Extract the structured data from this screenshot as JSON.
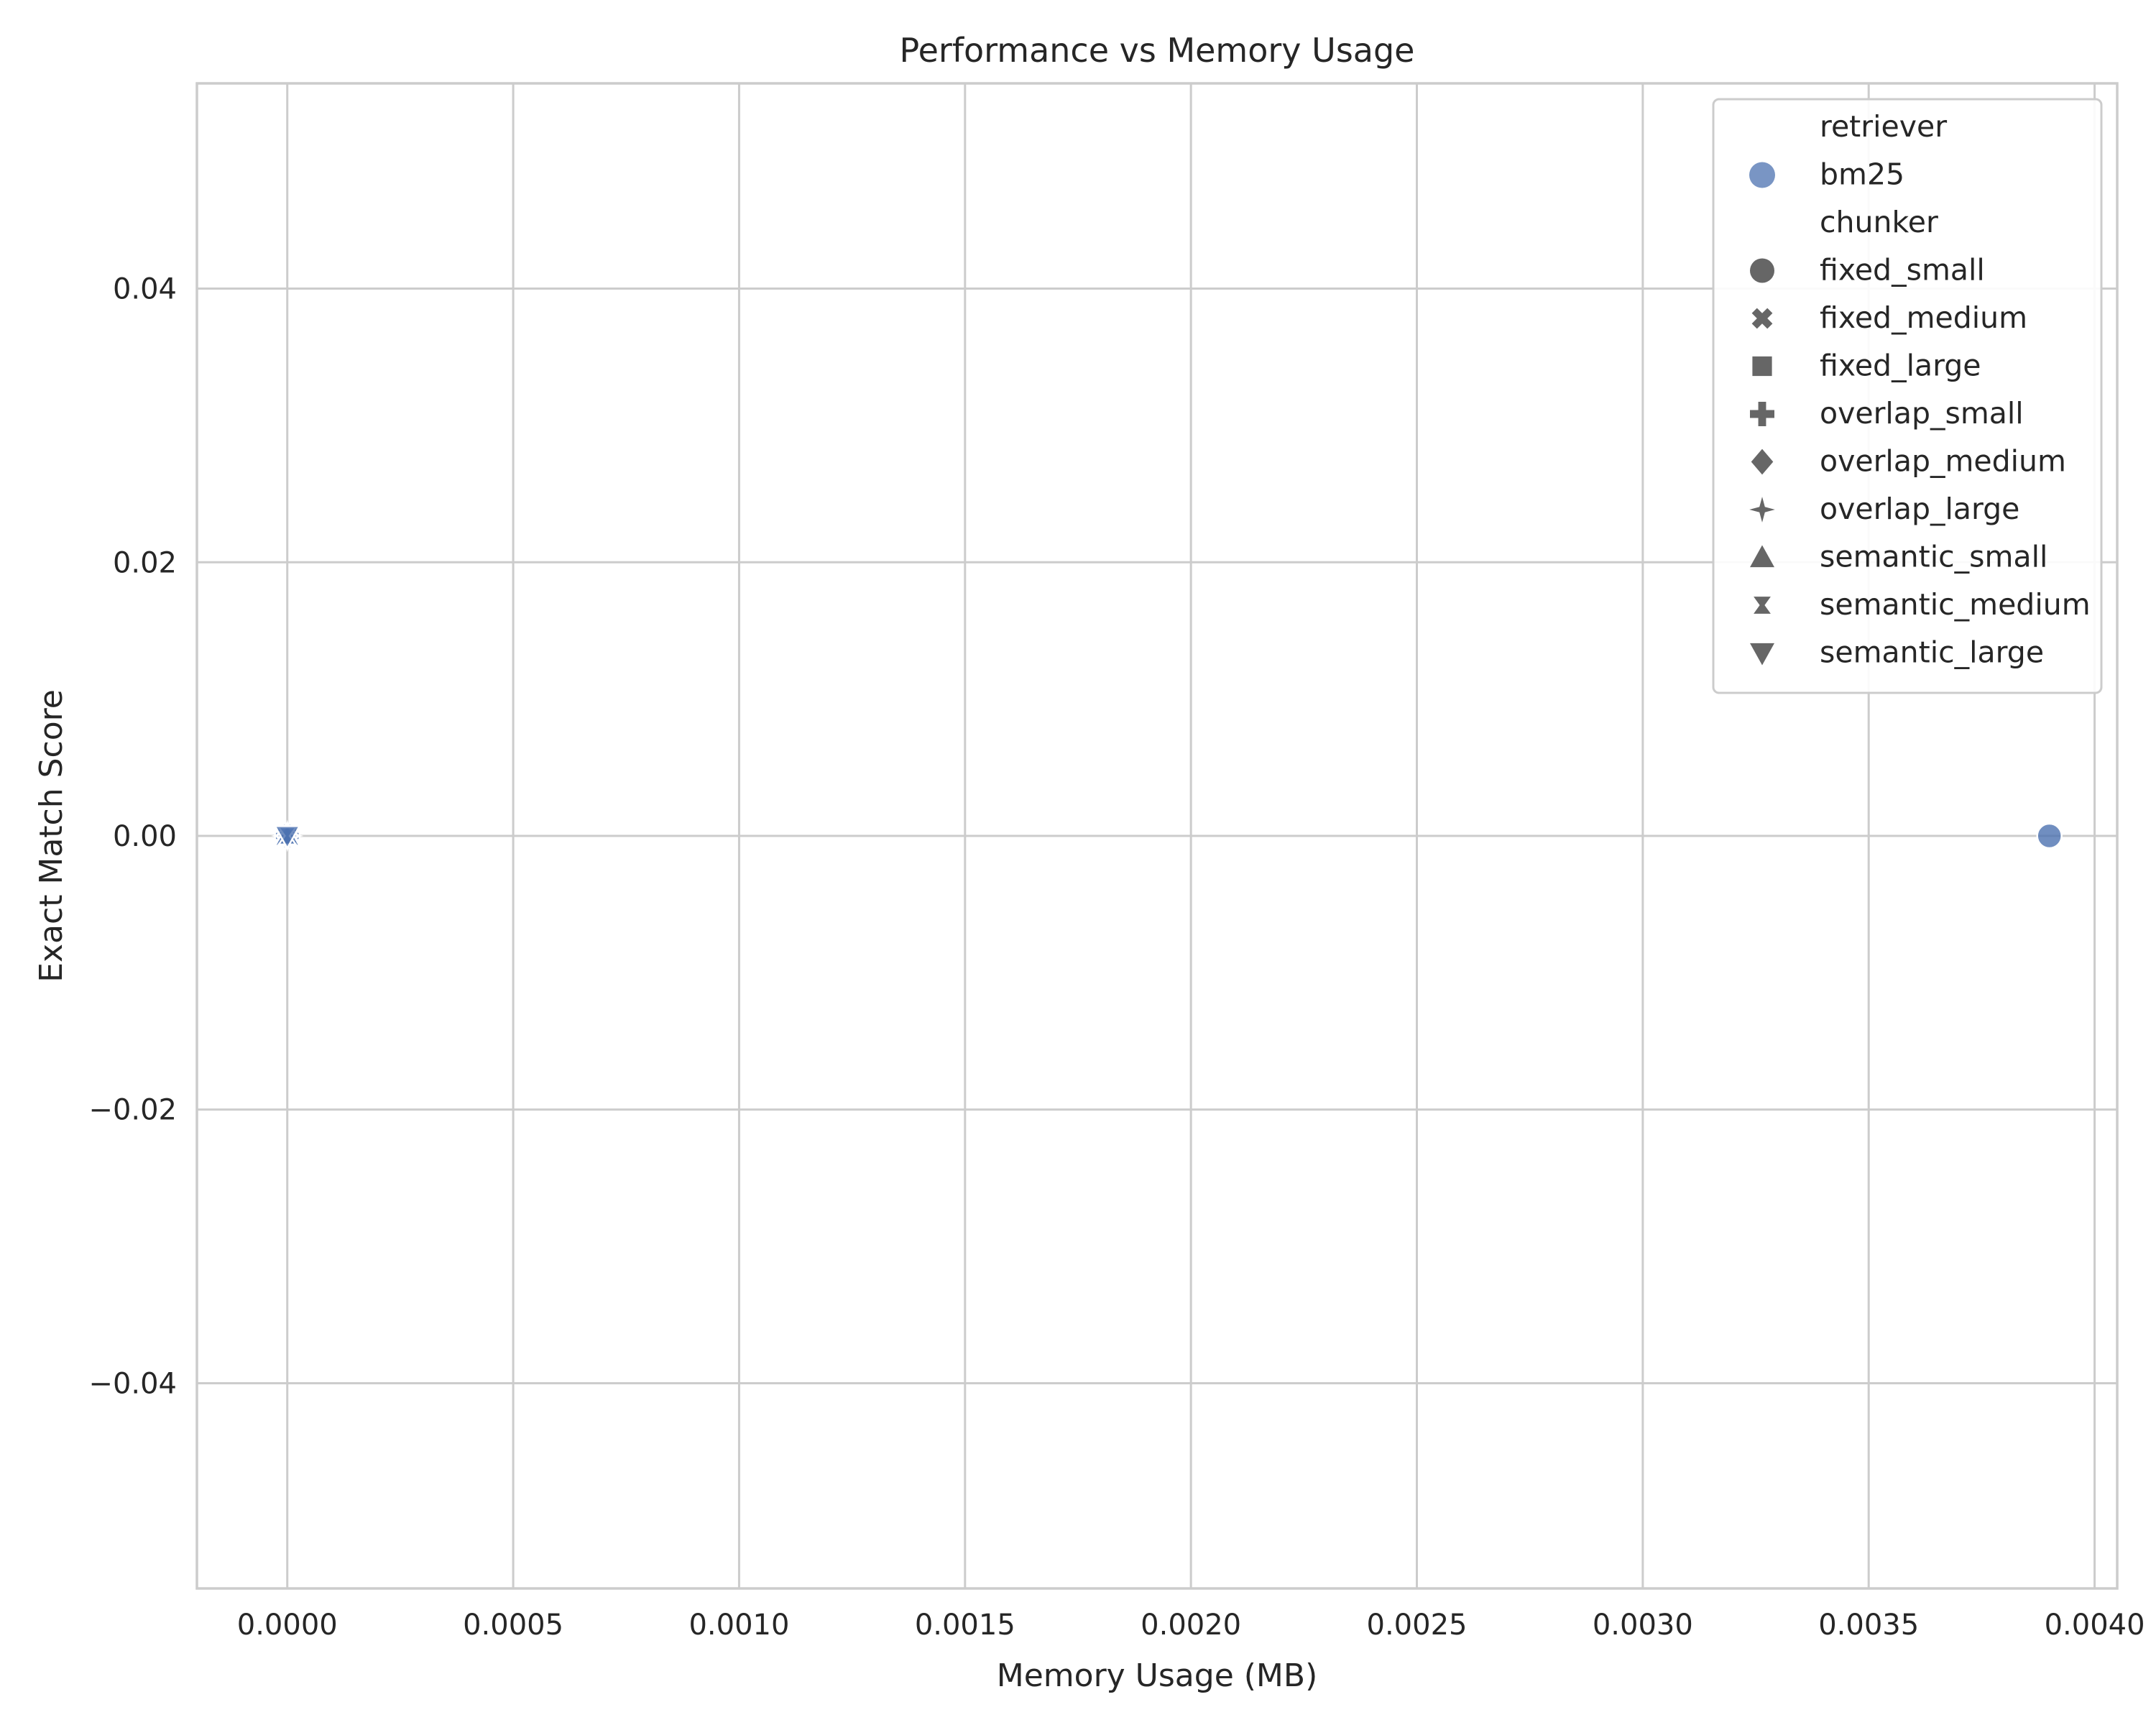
{
  "chart_data": {
    "type": "scatter",
    "title": "Performance vs Memory Usage",
    "xlabel": "Memory Usage (MB)",
    "ylabel": "Exact Match Score",
    "xlim": [
      -0.0002,
      0.00405
    ],
    "ylim": [
      -0.055,
      0.055
    ],
    "xticks": [
      0.0,
      0.0005,
      0.001,
      0.0015,
      0.002,
      0.0025,
      0.003,
      0.0035,
      0.004
    ],
    "xtick_labels": [
      "0.0000",
      "0.0005",
      "0.0010",
      "0.0015",
      "0.0020",
      "0.0025",
      "0.0030",
      "0.0035",
      "0.0040"
    ],
    "yticks": [
      -0.04,
      -0.02,
      0.0,
      0.02,
      0.04
    ],
    "ytick_labels": [
      "−0.04",
      "−0.02",
      "0.00",
      "0.02",
      "0.04"
    ],
    "grid": true,
    "legend_position": "top-right",
    "legend": {
      "hue_title": "retriever",
      "hue_entries": [
        {
          "label": "bm25",
          "color": "#4c72b0"
        }
      ],
      "style_title": "chunker",
      "style_entries": [
        {
          "label": "fixed_small",
          "marker": "circle"
        },
        {
          "label": "fixed_medium",
          "marker": "x"
        },
        {
          "label": "fixed_large",
          "marker": "square"
        },
        {
          "label": "overlap_small",
          "marker": "plus"
        },
        {
          "label": "overlap_medium",
          "marker": "diamond"
        },
        {
          "label": "overlap_large",
          "marker": "star4"
        },
        {
          "label": "semantic_small",
          "marker": "triangle-up"
        },
        {
          "label": "semantic_medium",
          "marker": "hourglass"
        },
        {
          "label": "semantic_large",
          "marker": "triangle-down"
        }
      ]
    },
    "points": [
      {
        "x": 0.0,
        "y": 0.0,
        "retriever": "bm25",
        "chunker": "fixed_medium"
      },
      {
        "x": 0.0,
        "y": 0.0,
        "retriever": "bm25",
        "chunker": "fixed_large"
      },
      {
        "x": 0.0,
        "y": 0.0,
        "retriever": "bm25",
        "chunker": "overlap_small"
      },
      {
        "x": 0.0,
        "y": 0.0,
        "retriever": "bm25",
        "chunker": "overlap_medium"
      },
      {
        "x": 0.0,
        "y": 0.0,
        "retriever": "bm25",
        "chunker": "overlap_large"
      },
      {
        "x": 0.0,
        "y": 0.0,
        "retriever": "bm25",
        "chunker": "semantic_small"
      },
      {
        "x": 0.0,
        "y": 0.0,
        "retriever": "bm25",
        "chunker": "semantic_medium"
      },
      {
        "x": 0.0,
        "y": 0.0,
        "retriever": "bm25",
        "chunker": "semantic_large"
      },
      {
        "x": 0.0039,
        "y": 0.0,
        "retriever": "bm25",
        "chunker": "fixed_small"
      }
    ],
    "colors": {
      "series": "#4c72b0",
      "legend_marker": "#666666",
      "grid": "#cccccc",
      "text": "#262626"
    }
  }
}
